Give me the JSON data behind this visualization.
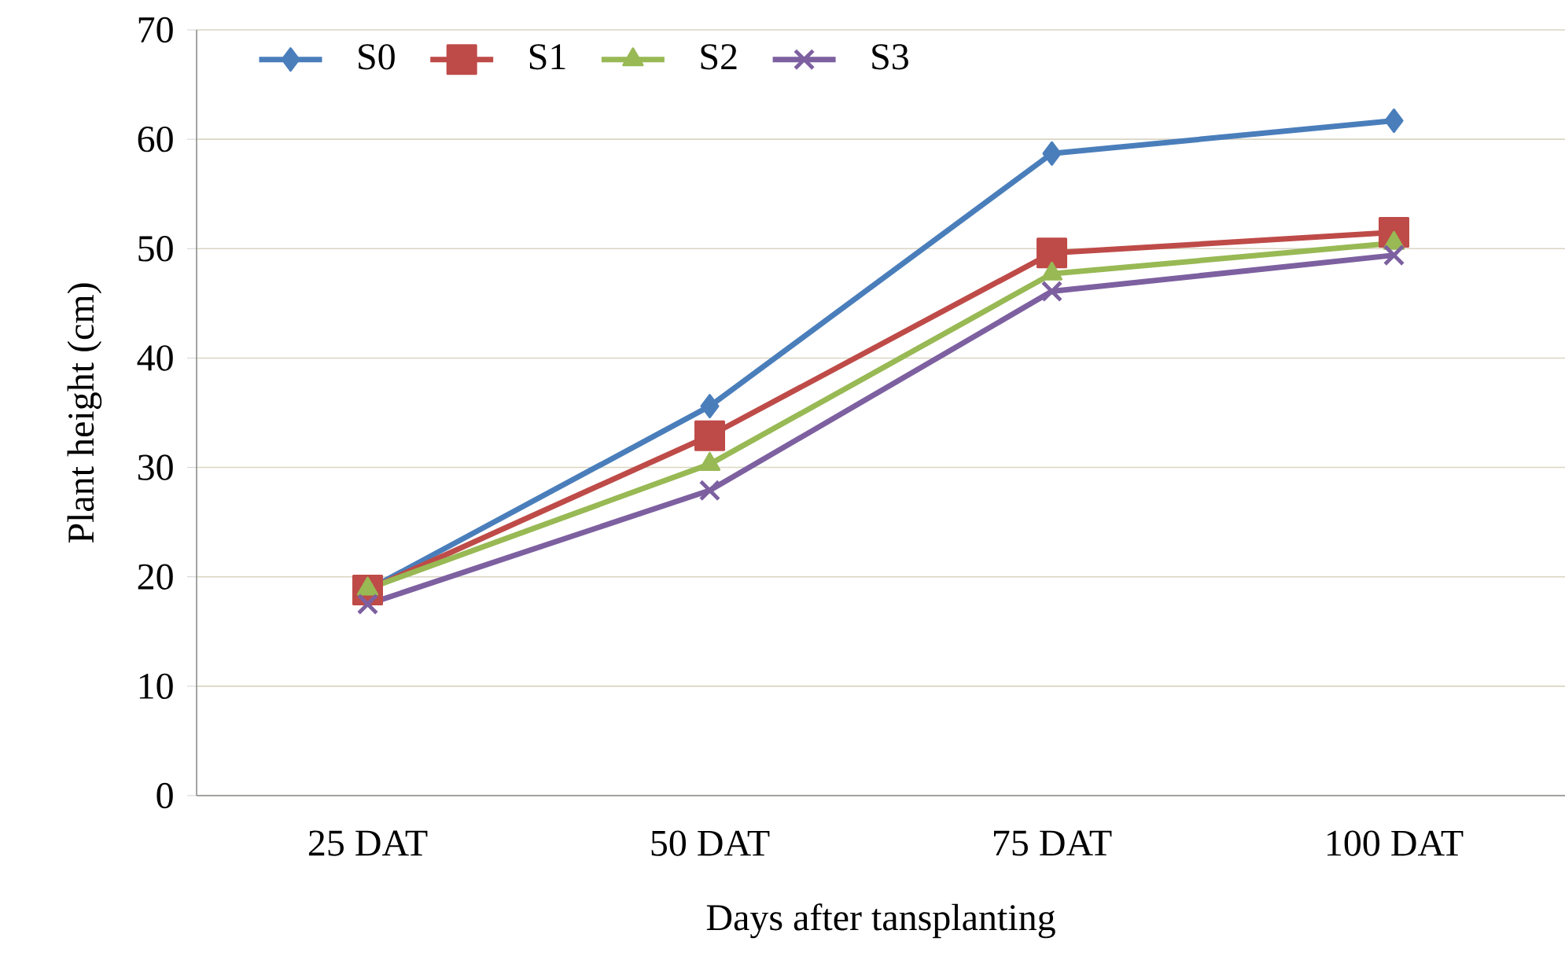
{
  "chart_data": {
    "type": "line",
    "xlabel": "Days after tansplanting",
    "ylabel": "Plant height (cm)",
    "categories": [
      "25 DAT",
      "50 DAT",
      "75 DAT",
      "100 DAT"
    ],
    "series": [
      {
        "name": "S0",
        "color": "#4a7ebb",
        "marker": "diamond",
        "values": [
          18.8,
          35.6,
          58.7,
          61.7
        ]
      },
      {
        "name": "S1",
        "color": "#be4b48",
        "marker": "square",
        "values": [
          18.8,
          32.9,
          49.6,
          51.5
        ]
      },
      {
        "name": "S2",
        "color": "#98b954",
        "marker": "triangle",
        "values": [
          18.9,
          30.3,
          47.7,
          50.5
        ]
      },
      {
        "name": "S3",
        "color": "#7d60a0",
        "marker": "cross",
        "values": [
          17.5,
          27.9,
          46.1,
          49.4
        ]
      }
    ],
    "ylim": [
      0,
      70
    ],
    "yticks": [
      0,
      10,
      20,
      30,
      40,
      50,
      60,
      70
    ],
    "grid": "y",
    "legend": "top left",
    "line_style": "solid"
  }
}
